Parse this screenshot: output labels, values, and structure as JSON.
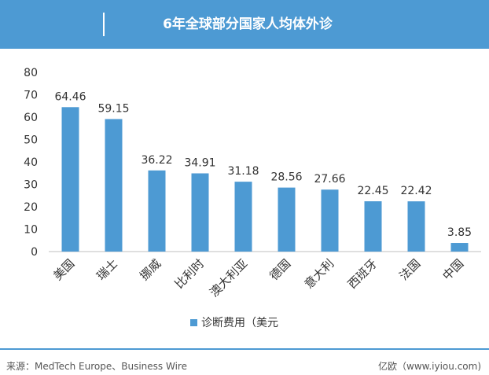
{
  "header": {
    "title": "6年全球部分国家人均体外诊"
  },
  "chart_data": {
    "type": "bar",
    "categories": [
      "美国",
      "瑞士",
      "挪威",
      "比利时",
      "澳大利亚",
      "德国",
      "意大利",
      "西班牙",
      "法国",
      "中国"
    ],
    "series": [
      {
        "name": "诊断费用（美元",
        "values": [
          64.46,
          59.15,
          36.22,
          34.91,
          31.18,
          28.56,
          27.66,
          22.45,
          22.42,
          3.85
        ]
      }
    ],
    "data_labels": [
      "64.46",
      "59.15",
      "36.22",
      "34.91",
      "31.18",
      "28.56",
      "27.66",
      "22.45",
      "22.42",
      "3.85"
    ],
    "ylim": [
      0,
      80
    ],
    "yticks": [
      0,
      10,
      20,
      30,
      40,
      50,
      60,
      70,
      80
    ],
    "grid": false,
    "legend_position": "bottom-center",
    "bar_color": "#4d9ad3"
  },
  "footer": {
    "source": "来源：MedTech Europe、Business Wire",
    "brand": "亿欧（www.iyiou.com)"
  }
}
